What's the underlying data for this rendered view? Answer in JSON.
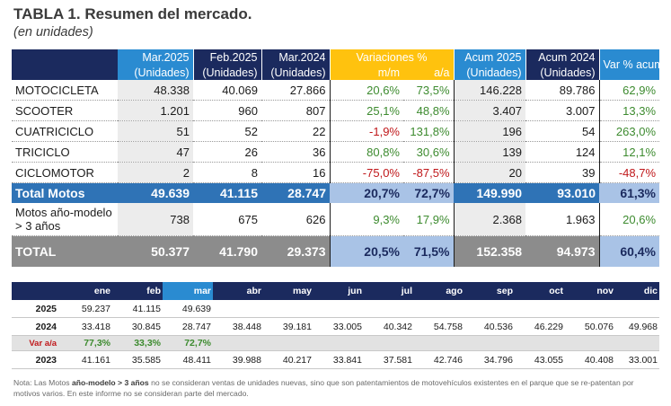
{
  "title": "TABLA 1. Resumen del mercado.",
  "subtitle": "(en unidades)",
  "main_table": {
    "headers": {
      "mar2025": [
        "Mar.2025",
        "(Unidades)"
      ],
      "feb2025": [
        "Feb.2025",
        "(Unidades)"
      ],
      "mar2024": [
        "Mar.2024",
        "(Unidades)"
      ],
      "variaciones": "Variaciones %",
      "mm": "m/m",
      "aa": "a/a",
      "acum2025": [
        "Acum 2025",
        "(Unidades)"
      ],
      "acum2024": [
        "Acum 2024",
        "(Unidades)"
      ],
      "varacum": "Var % acum"
    },
    "rows": [
      {
        "label": "MOTOCICLETA",
        "mar2025": "48.338",
        "feb2025": "40.069",
        "mar2024": "27.866",
        "mm": "20,6%",
        "aa": "73,5%",
        "acum2025": "146.228",
        "acum2024": "89.786",
        "varacum": "62,9%"
      },
      {
        "label": "SCOOTER",
        "mar2025": "1.201",
        "feb2025": "960",
        "mar2024": "807",
        "mm": "25,1%",
        "aa": "48,8%",
        "acum2025": "3.407",
        "acum2024": "3.007",
        "varacum": "13,3%"
      },
      {
        "label": "CUATRICICLO",
        "mar2025": "51",
        "feb2025": "52",
        "mar2024": "22",
        "mm": "-1,9%",
        "aa": "131,8%",
        "acum2025": "196",
        "acum2024": "54",
        "varacum": "263,0%"
      },
      {
        "label": "TRICICLO",
        "mar2025": "47",
        "feb2025": "26",
        "mar2024": "36",
        "mm": "80,8%",
        "aa": "30,6%",
        "acum2025": "139",
        "acum2024": "124",
        "varacum": "12,1%"
      },
      {
        "label": "CICLOMOTOR",
        "mar2025": "2",
        "feb2025": "8",
        "mar2024": "16",
        "mm": "-75,0%",
        "aa": "-87,5%",
        "acum2025": "20",
        "acum2024": "39",
        "varacum": "-48,7%"
      }
    ],
    "total_motos": {
      "label": "Total Motos",
      "mar2025": "49.639",
      "feb2025": "41.115",
      "mar2024": "28.747",
      "mm": "20,7%",
      "aa": "72,7%",
      "acum2025": "149.990",
      "acum2024": "93.010",
      "varacum": "61,3%"
    },
    "motos_3": {
      "label": "Motos año-modelo > 3 años",
      "mar2025": "738",
      "feb2025": "675",
      "mar2024": "626",
      "mm": "9,3%",
      "aa": "17,9%",
      "acum2025": "2.368",
      "acum2024": "1.963",
      "varacum": "20,6%"
    },
    "total": {
      "label": "TOTAL",
      "mar2025": "50.377",
      "feb2025": "41.790",
      "mar2024": "29.373",
      "mm": "20,5%",
      "aa": "71,5%",
      "acum2025": "152.358",
      "acum2024": "94.973",
      "varacum": "60,4%"
    }
  },
  "monthly_table": {
    "months": [
      "ene",
      "feb",
      "mar",
      "abr",
      "may",
      "jun",
      "jul",
      "ago",
      "sep",
      "oct",
      "nov",
      "dic"
    ],
    "rows": [
      {
        "year": "2025",
        "values": [
          "59.237",
          "41.115",
          "49.639",
          "",
          "",
          "",
          "",
          "",
          "",
          "",
          "",
          ""
        ]
      },
      {
        "year": "2024",
        "values": [
          "33.418",
          "30.845",
          "28.747",
          "38.448",
          "39.181",
          "33.005",
          "40.342",
          "54.758",
          "40.536",
          "46.229",
          "50.076",
          "49.968"
        ]
      },
      {
        "year": "Var a/a",
        "values": [
          "77,3%",
          "33,3%",
          "72,7%",
          "",
          "",
          "",
          "",
          "",
          "",
          "",
          "",
          ""
        ]
      },
      {
        "year": "2023",
        "values": [
          "41.161",
          "35.585",
          "48.411",
          "39.988",
          "40.217",
          "33.841",
          "37.581",
          "42.746",
          "34.796",
          "43.055",
          "40.408",
          "33.001"
        ]
      }
    ]
  },
  "note": {
    "prefix": "Nota: Las Motos ",
    "bold": "año-modelo > 3 años",
    "rest": " no se consideran ventas de unidades nuevas, sino que son patentamientos de motovehículos existentes en el parque que se re-patentan por motivos varios. En este informe no se consideran parte del mercado."
  },
  "colors": {
    "navy": "#1b2a5e",
    "blue": "#2a8bd1",
    "amber": "#ffc20e",
    "total_motos": "#2f73b6",
    "total": "#8c8c8c",
    "positive": "#3d8b2f",
    "negative": "#c0181b"
  }
}
